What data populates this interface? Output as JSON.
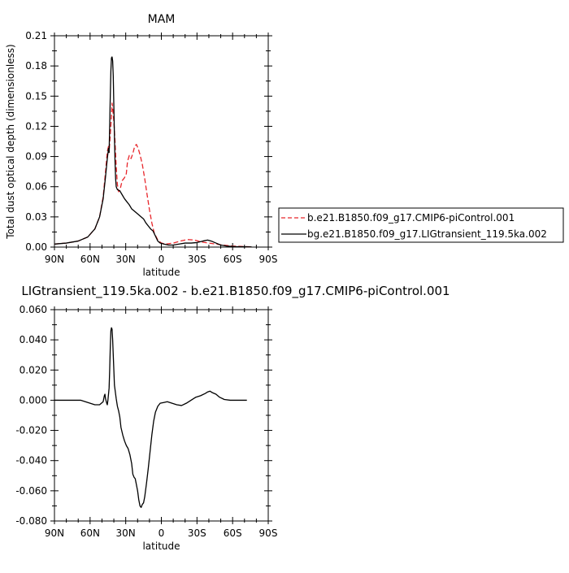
{
  "chart_data": [
    {
      "type": "line",
      "title": "MAM",
      "xlabel": "latitude",
      "ylabel": "Total dust optical depth (dimensionless)",
      "xlim": [
        90,
        -90
      ],
      "ylim": [
        0,
        0.21
      ],
      "x_ticks": [
        90,
        60,
        30,
        0,
        -30,
        -60,
        -90
      ],
      "x_tick_labels": [
        "90N",
        "60N",
        "30N",
        "0",
        "30S",
        "60S",
        "90S"
      ],
      "y_ticks": [
        0,
        0.03,
        0.06,
        0.09,
        0.12,
        0.15,
        0.18,
        0.21
      ],
      "y_tick_labels": [
        "0.00",
        "0.03",
        "0.06",
        "0.09",
        "0.12",
        "0.15",
        "0.18",
        "0.21"
      ],
      "grid": false,
      "legend_position": "right, outside plot",
      "series": [
        {
          "name": "b.e21.B1850.f09_g17.CMIP6-piControl.001",
          "color": "#e8262b",
          "dash": "dashed",
          "points": [
            [
              90,
              0.003
            ],
            [
              80,
              0.004
            ],
            [
              70,
              0.006
            ],
            [
              62,
              0.01
            ],
            [
              56,
              0.018
            ],
            [
              52,
              0.03
            ],
            [
              49,
              0.05
            ],
            [
              47,
              0.075
            ],
            [
              45.5,
              0.095
            ],
            [
              44.5,
              0.1
            ],
            [
              44,
              0.094
            ],
            [
              43,
              0.112
            ],
            [
              42,
              0.13
            ],
            [
              41.5,
              0.143
            ],
            [
              41,
              0.138
            ],
            [
              40,
              0.125
            ],
            [
              39,
              0.105
            ],
            [
              38,
              0.08
            ],
            [
              37,
              0.062
            ],
            [
              36,
              0.055
            ],
            [
              35,
              0.056
            ],
            [
              33,
              0.066
            ],
            [
              31,
              0.069
            ],
            [
              29.5,
              0.073
            ],
            [
              28.5,
              0.085
            ],
            [
              27,
              0.091
            ],
            [
              25.5,
              0.088
            ],
            [
              24,
              0.093
            ],
            [
              22.5,
              0.1
            ],
            [
              21,
              0.102
            ],
            [
              19.5,
              0.098
            ],
            [
              18,
              0.092
            ],
            [
              16,
              0.082
            ],
            [
              14,
              0.068
            ],
            [
              12,
              0.052
            ],
            [
              10,
              0.037
            ],
            [
              8,
              0.024
            ],
            [
              6,
              0.014
            ],
            [
              3,
              0.007
            ],
            [
              0,
              0.004
            ],
            [
              -4,
              0.003
            ],
            [
              -10,
              0.004
            ],
            [
              -16,
              0.006
            ],
            [
              -22,
              0.0075
            ],
            [
              -28,
              0.007
            ],
            [
              -34,
              0.005
            ],
            [
              -40,
              0.004
            ],
            [
              -46,
              0.003
            ],
            [
              -52,
              0.002
            ],
            [
              -60,
              0.001
            ],
            [
              -70,
              0.0005
            ],
            [
              -76,
              0.0003
            ]
          ]
        },
        {
          "name": "bg.e21.B1850.f09_g17.LIGtransient_119.5ka.002",
          "color": "#000000",
          "dash": "solid",
          "points": [
            [
              90,
              0.003
            ],
            [
              80,
              0.004
            ],
            [
              70,
              0.006
            ],
            [
              62,
              0.01
            ],
            [
              56,
              0.018
            ],
            [
              52,
              0.03
            ],
            [
              49,
              0.048
            ],
            [
              47,
              0.07
            ],
            [
              45.5,
              0.088
            ],
            [
              44.5,
              0.098
            ],
            [
              44,
              0.094
            ],
            [
              43.5,
              0.12
            ],
            [
              43,
              0.15
            ],
            [
              42.5,
              0.175
            ],
            [
              42,
              0.188
            ],
            [
              41.5,
              0.189
            ],
            [
              41,
              0.185
            ],
            [
              40.5,
              0.17
            ],
            [
              40,
              0.14
            ],
            [
              39.5,
              0.11
            ],
            [
              39,
              0.085
            ],
            [
              38.5,
              0.068
            ],
            [
              38,
              0.06
            ],
            [
              37,
              0.057
            ],
            [
              35,
              0.056
            ],
            [
              33,
              0.052
            ],
            [
              31,
              0.048
            ],
            [
              29,
              0.045
            ],
            [
              27,
              0.042
            ],
            [
              25,
              0.038
            ],
            [
              23,
              0.036
            ],
            [
              21,
              0.034
            ],
            [
              19,
              0.032
            ],
            [
              17,
              0.03
            ],
            [
              15,
              0.028
            ],
            [
              13,
              0.024
            ],
            [
              11,
              0.021
            ],
            [
              9,
              0.018
            ],
            [
              7,
              0.016
            ],
            [
              5,
              0.011
            ],
            [
              3,
              0.006
            ],
            [
              1,
              0.004
            ],
            [
              -2,
              0.003
            ],
            [
              -6,
              0.002
            ],
            [
              -10,
              0.002
            ],
            [
              -15,
              0.003
            ],
            [
              -20,
              0.004
            ],
            [
              -25,
              0.004
            ],
            [
              -30,
              0.0045
            ],
            [
              -35,
              0.006
            ],
            [
              -39,
              0.007
            ],
            [
              -42,
              0.006
            ],
            [
              -46,
              0.004
            ],
            [
              -50,
              0.002
            ],
            [
              -55,
              0.001
            ],
            [
              -62,
              0.0005
            ],
            [
              -70,
              0.0003
            ],
            [
              -76,
              0.0002
            ]
          ]
        }
      ]
    },
    {
      "type": "line",
      "title": "LIGtransient_119.5ka.002 - b.e21.B1850.f09_g17.CMIP6-piControl.001",
      "xlabel": "latitude",
      "ylabel": "",
      "xlim": [
        90,
        -90
      ],
      "ylim": [
        -0.08,
        0.06
      ],
      "x_ticks": [
        90,
        60,
        30,
        0,
        -30,
        -60,
        -90
      ],
      "x_tick_labels": [
        "90N",
        "60N",
        "30N",
        "0",
        "30S",
        "60S",
        "90S"
      ],
      "y_ticks": [
        -0.08,
        -0.06,
        -0.04,
        -0.02,
        0,
        0.02,
        0.04,
        0.06
      ],
      "y_tick_labels": [
        "-0.080",
        "-0.060",
        "-0.040",
        "-0.020",
        "0.000",
        "0.020",
        "0.040",
        "0.060"
      ],
      "grid": false,
      "series": [
        {
          "color": "#000000",
          "dash": "solid",
          "points": [
            [
              90,
              0
            ],
            [
              75,
              0
            ],
            [
              68,
              0
            ],
            [
              64,
              -0.001
            ],
            [
              60,
              -0.002
            ],
            [
              56,
              -0.003
            ],
            [
              52,
              -0.003
            ],
            [
              49,
              -0.001
            ],
            [
              48,
              0.003
            ],
            [
              47.5,
              0.004
            ],
            [
              47,
              0.001
            ],
            [
              46,
              -0.002
            ],
            [
              45.5,
              -0.003
            ],
            [
              45,
              0
            ],
            [
              44,
              0.008
            ],
            [
              43.5,
              0.02
            ],
            [
              43,
              0.035
            ],
            [
              42.5,
              0.046
            ],
            [
              42,
              0.048
            ],
            [
              41.5,
              0.047
            ],
            [
              41,
              0.04
            ],
            [
              40.5,
              0.03
            ],
            [
              40,
              0.02
            ],
            [
              39.5,
              0.01
            ],
            [
              38.5,
              0.004
            ],
            [
              38,
              0.001
            ],
            [
              37,
              -0.004
            ],
            [
              36,
              -0.007
            ],
            [
              35,
              -0.011
            ],
            [
              34,
              -0.018
            ],
            [
              32.5,
              -0.023
            ],
            [
              31,
              -0.027
            ],
            [
              29.5,
              -0.03
            ],
            [
              28,
              -0.032
            ],
            [
              26.5,
              -0.036
            ],
            [
              25,
              -0.042
            ],
            [
              24,
              -0.049
            ],
            [
              23,
              -0.051
            ],
            [
              22,
              -0.052
            ],
            [
              21,
              -0.056
            ],
            [
              20,
              -0.06
            ],
            [
              19,
              -0.066
            ],
            [
              18,
              -0.07
            ],
            [
              17,
              -0.071
            ],
            [
              16,
              -0.069
            ],
            [
              15,
              -0.068
            ],
            [
              14,
              -0.064
            ],
            [
              12.5,
              -0.055
            ],
            [
              11,
              -0.045
            ],
            [
              9.5,
              -0.034
            ],
            [
              8,
              -0.023
            ],
            [
              6.5,
              -0.014
            ],
            [
              5,
              -0.008
            ],
            [
              3,
              -0.004
            ],
            [
              1,
              -0.002
            ],
            [
              -2,
              -0.0015
            ],
            [
              -5,
              -0.001
            ],
            [
              -9,
              -0.002
            ],
            [
              -13,
              -0.003
            ],
            [
              -17,
              -0.0035
            ],
            [
              -21,
              -0.002
            ],
            [
              -25,
              0
            ],
            [
              -29,
              0.002
            ],
            [
              -33,
              0.003
            ],
            [
              -37,
              0.0045
            ],
            [
              -39,
              0.0055
            ],
            [
              -41,
              0.006
            ],
            [
              -43,
              0.005
            ],
            [
              -46,
              0.004
            ],
            [
              -49,
              0.002
            ],
            [
              -53,
              0.0005
            ],
            [
              -58,
              0
            ],
            [
              -65,
              0
            ],
            [
              -72,
              0
            ]
          ]
        }
      ]
    }
  ]
}
